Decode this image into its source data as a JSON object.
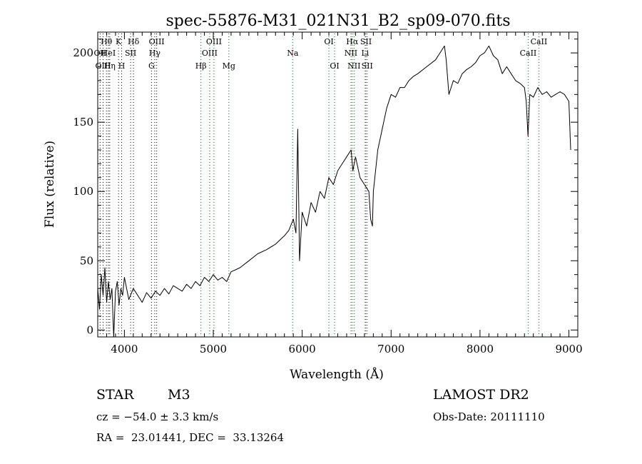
{
  "chart_data": {
    "type": "line",
    "title": "spec-55876-M31_021N31_B2_sp09-070.fits",
    "xlabel": "Wavelength (Å)",
    "ylabel": "Flux (relative)",
    "xlim": [
      3700,
      9100
    ],
    "ylim": [
      -5,
      215
    ],
    "xticks": [
      4000,
      5000,
      6000,
      7000,
      8000,
      9000
    ],
    "yticks": [
      0,
      50,
      100,
      150,
      200
    ],
    "grid": false,
    "series": [
      {
        "x": [
          3700,
          3720,
          3740,
          3760,
          3780,
          3800,
          3820,
          3840,
          3860,
          3880,
          3900,
          3920,
          3940,
          3960,
          3980,
          4000,
          4050,
          4100,
          4150,
          4200,
          4250,
          4300,
          4350,
          4400,
          4450,
          4500,
          4550,
          4600,
          4650,
          4700,
          4750,
          4800,
          4850,
          4900,
          4950,
          5000,
          5050,
          5100,
          5150,
          5200,
          5300,
          5400,
          5500,
          5600,
          5700,
          5800,
          5850,
          5900,
          5930,
          5950,
          5970,
          6000,
          6050,
          6100,
          6150,
          6200,
          6250,
          6300,
          6350,
          6400,
          6450,
          6500,
          6550,
          6570,
          6600,
          6650,
          6700,
          6750,
          6770,
          6790,
          6800,
          6850,
          6900,
          6950,
          7000,
          7050,
          7100,
          7150,
          7200,
          7250,
          7300,
          7400,
          7500,
          7550,
          7600,
          7620,
          7650,
          7700,
          7750,
          7800,
          7850,
          7900,
          7950,
          8000,
          8050,
          8100,
          8150,
          8200,
          8250,
          8300,
          8350,
          8400,
          8450,
          8500,
          8520,
          8540,
          8560,
          8600,
          8650,
          8700,
          8750,
          8800,
          8850,
          8900,
          8950,
          9000,
          9020
        ],
        "y": [
          30,
          15,
          40,
          25,
          45,
          20,
          35,
          22,
          30,
          -5,
          28,
          35,
          18,
          30,
          25,
          38,
          22,
          30,
          25,
          20,
          27,
          23,
          28,
          25,
          30,
          26,
          32,
          30,
          28,
          33,
          30,
          35,
          32,
          38,
          35,
          40,
          36,
          38,
          35,
          42,
          45,
          50,
          55,
          58,
          62,
          68,
          72,
          80,
          70,
          145,
          50,
          85,
          75,
          92,
          85,
          100,
          95,
          110,
          105,
          115,
          120,
          125,
          130,
          115,
          125,
          110,
          105,
          100,
          80,
          75,
          100,
          130,
          145,
          160,
          170,
          168,
          175,
          175,
          180,
          183,
          185,
          190,
          195,
          200,
          205,
          195,
          170,
          180,
          178,
          185,
          188,
          190,
          193,
          198,
          200,
          205,
          198,
          195,
          185,
          190,
          185,
          180,
          178,
          175,
          165,
          140,
          170,
          168,
          175,
          170,
          172,
          168,
          170,
          172,
          170,
          165,
          130
        ]
      }
    ],
    "lines": [
      {
        "label": "Hθ",
        "x": 3798,
        "row": 1,
        "color": "#000000"
      },
      {
        "label": "OII",
        "x": 3727,
        "row": 2,
        "color": "#000000"
      },
      {
        "label": "HeI",
        "x": 3820,
        "row": 2,
        "color": "#000000"
      },
      {
        "label": "OIII",
        "x": 3760,
        "row": 3,
        "color": "#000000"
      },
      {
        "label": "Hη",
        "x": 3835,
        "row": 3,
        "color": "#000000"
      },
      {
        "label": "K",
        "x": 3934,
        "row": 1,
        "color": "#000000"
      },
      {
        "label": "H",
        "x": 3969,
        "row": 3,
        "color": "#000000"
      },
      {
        "label": "SII",
        "x": 4070,
        "row": 2,
        "color": "#000000"
      },
      {
        "label": "Hδ",
        "x": 4102,
        "row": 1,
        "color": "#000000"
      },
      {
        "label": "OIII",
        "x": 4363,
        "row": 1,
        "color": "#000000"
      },
      {
        "label": "Hγ",
        "x": 4341,
        "row": 2,
        "color": "#000000"
      },
      {
        "label": "G",
        "x": 4305,
        "row": 3,
        "color": "#000000"
      },
      {
        "label": "Hβ",
        "x": 4861,
        "row": 3,
        "color": "#c00000"
      },
      {
        "label": "OIII",
        "x": 4959,
        "row": 2,
        "color": "#c00000"
      },
      {
        "label": "OIII",
        "x": 5007,
        "row": 1,
        "color": "#c00000"
      },
      {
        "label": "Mg",
        "x": 5175,
        "row": 3,
        "color": "#c00000"
      },
      {
        "label": "Na",
        "x": 5893,
        "row": 2,
        "color": "#c00000"
      },
      {
        "label": "OI",
        "x": 6300,
        "row": 1,
        "color": "#c00000"
      },
      {
        "label": "OI",
        "x": 6364,
        "row": 3,
        "color": "#c00000"
      },
      {
        "label": "Hα",
        "x": 6563,
        "row": 1,
        "color": "#c00000"
      },
      {
        "label": "NII",
        "x": 6548,
        "row": 2,
        "color": "#c00000"
      },
      {
        "label": "NII",
        "x": 6583,
        "row": 3,
        "color": "#c00000"
      },
      {
        "label": "SII",
        "x": 6717,
        "row": 1,
        "color": "#c00000"
      },
      {
        "label": "SII",
        "x": 6731,
        "row": 3,
        "color": "#c00000"
      },
      {
        "label": "Li",
        "x": 6708,
        "row": 2,
        "color": "#c00000"
      },
      {
        "label": "CaII",
        "x": 8542,
        "row": 2,
        "color": "#c00000"
      },
      {
        "label": "CaII",
        "x": 8662,
        "row": 1,
        "color": "#c00000"
      }
    ]
  },
  "info": {
    "object_class": "STAR",
    "subclass": "M3",
    "survey": "LAMOST DR2",
    "cz": "cz = −54.0 ± 3.3 km/s",
    "obs_date": "Obs-Date: 20111110",
    "coords": "RA =  23.01441, DEC =  33.13264"
  }
}
